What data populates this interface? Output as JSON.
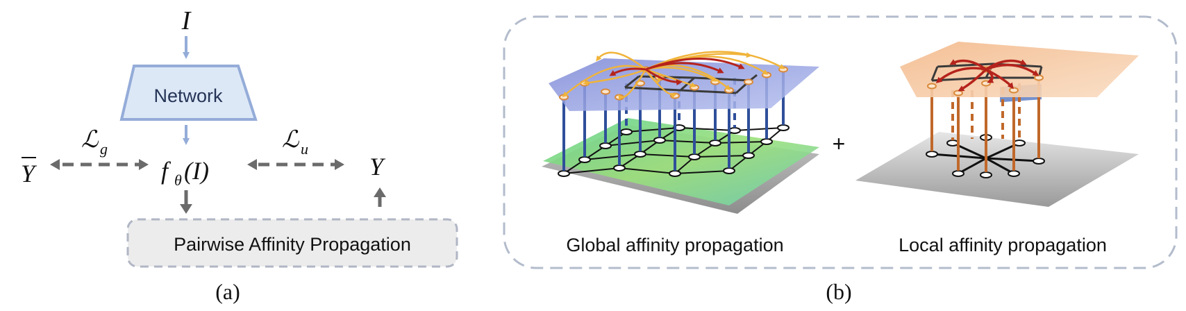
{
  "panel_a": {
    "input_symbol": "I",
    "network_label": "Network",
    "output_fn": "f",
    "output_fn_sub": "θ",
    "output_fn_arg": "(I)",
    "left_target": "Y",
    "right_target": "Y",
    "loss_left": "ℒ",
    "loss_left_sub": "g",
    "loss_right": "ℒ",
    "loss_right_sub": "u",
    "propagation_label": "Pairwise Affinity Propagation",
    "caption": "(a)"
  },
  "panel_b": {
    "global_label": "Global affinity propagation",
    "plus_sign": "+",
    "local_label": "Local affinity propagation",
    "caption": "(b)"
  },
  "colors": {
    "arrow_blue": "#94acd8",
    "arrow_gray": "#6b6b6b",
    "network_fill": "#dde8f7",
    "network_stroke": "#94acd8",
    "box_fill": "#ececec",
    "box_stroke": "#b0b6c4",
    "panel_stroke": "#b3bccc",
    "global_pillar": "#2f4f9a",
    "local_pillar": "#c0682a",
    "red_arrow": "#b5231c",
    "yellow_arrow": "#f0b43a"
  }
}
